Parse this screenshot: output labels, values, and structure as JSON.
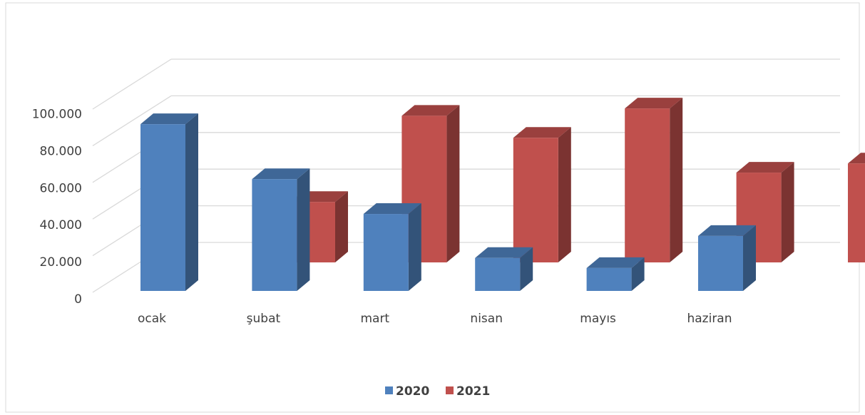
{
  "chart_data": {
    "type": "bar3d",
    "categories": [
      "ocak",
      "şubat",
      "mart",
      "nisan",
      "mayıs",
      "haziran"
    ],
    "series": [
      {
        "name": "2020",
        "color": "#4f81bd",
        "values": [
          91000,
          61000,
          42000,
          18000,
          12500,
          30000
        ]
      },
      {
        "name": "2021",
        "color": "#c0504d",
        "values": [
          33000,
          80000,
          68000,
          84000,
          49000,
          54000
        ]
      }
    ],
    "ylim": [
      0,
      100000
    ],
    "yticks": [
      0,
      {
        "value": 20000,
        "label": "20.000"
      },
      {
        "value": 40000,
        "label": "40.000"
      },
      {
        "value": 60000,
        "label": "60.000"
      },
      {
        "value": 80000,
        "label": "80.000"
      },
      {
        "value": 100000,
        "label": "100.000"
      }
    ],
    "grid": true,
    "legend": "bottom"
  }
}
